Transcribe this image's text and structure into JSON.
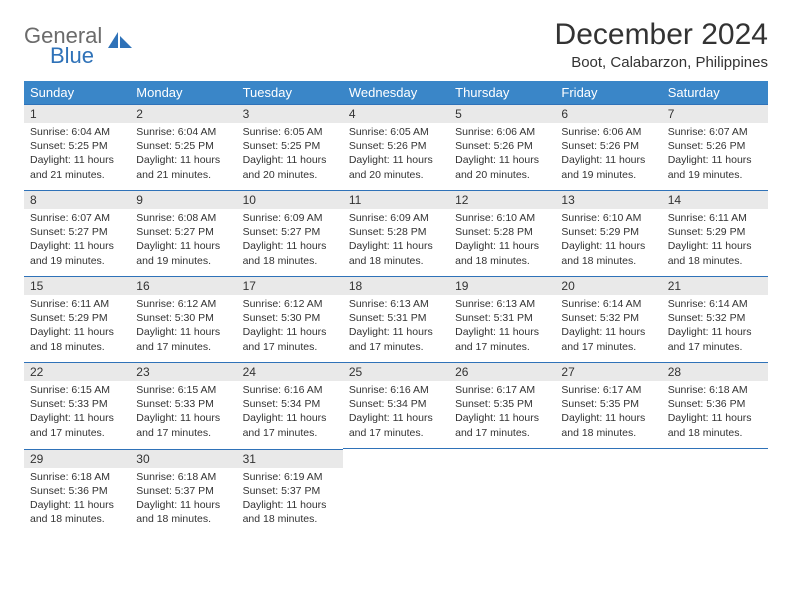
{
  "brand": {
    "word1": "General",
    "word2": "Blue"
  },
  "title": "December 2024",
  "location": "Boot, Calabarzon, Philippines",
  "colors": {
    "header_bg": "#3a86c8",
    "header_text": "#ffffff",
    "daynum_bg": "#e9e9e9",
    "rule": "#2f72b8",
    "body_text": "#333333",
    "logo_gray": "#6b6b6b",
    "logo_blue": "#2f72b8",
    "page_bg": "#ffffff"
  },
  "weekdays": [
    "Sunday",
    "Monday",
    "Tuesday",
    "Wednesday",
    "Thursday",
    "Friday",
    "Saturday"
  ],
  "labels": {
    "sunrise": "Sunrise:",
    "sunset": "Sunset:",
    "daylight": "Daylight:"
  },
  "weeks": [
    [
      {
        "n": "1",
        "sr": "6:04 AM",
        "ss": "5:25 PM",
        "dl": "11 hours and 21 minutes."
      },
      {
        "n": "2",
        "sr": "6:04 AM",
        "ss": "5:25 PM",
        "dl": "11 hours and 21 minutes."
      },
      {
        "n": "3",
        "sr": "6:05 AM",
        "ss": "5:25 PM",
        "dl": "11 hours and 20 minutes."
      },
      {
        "n": "4",
        "sr": "6:05 AM",
        "ss": "5:26 PM",
        "dl": "11 hours and 20 minutes."
      },
      {
        "n": "5",
        "sr": "6:06 AM",
        "ss": "5:26 PM",
        "dl": "11 hours and 20 minutes."
      },
      {
        "n": "6",
        "sr": "6:06 AM",
        "ss": "5:26 PM",
        "dl": "11 hours and 19 minutes."
      },
      {
        "n": "7",
        "sr": "6:07 AM",
        "ss": "5:26 PM",
        "dl": "11 hours and 19 minutes."
      }
    ],
    [
      {
        "n": "8",
        "sr": "6:07 AM",
        "ss": "5:27 PM",
        "dl": "11 hours and 19 minutes."
      },
      {
        "n": "9",
        "sr": "6:08 AM",
        "ss": "5:27 PM",
        "dl": "11 hours and 19 minutes."
      },
      {
        "n": "10",
        "sr": "6:09 AM",
        "ss": "5:27 PM",
        "dl": "11 hours and 18 minutes."
      },
      {
        "n": "11",
        "sr": "6:09 AM",
        "ss": "5:28 PM",
        "dl": "11 hours and 18 minutes."
      },
      {
        "n": "12",
        "sr": "6:10 AM",
        "ss": "5:28 PM",
        "dl": "11 hours and 18 minutes."
      },
      {
        "n": "13",
        "sr": "6:10 AM",
        "ss": "5:29 PM",
        "dl": "11 hours and 18 minutes."
      },
      {
        "n": "14",
        "sr": "6:11 AM",
        "ss": "5:29 PM",
        "dl": "11 hours and 18 minutes."
      }
    ],
    [
      {
        "n": "15",
        "sr": "6:11 AM",
        "ss": "5:29 PM",
        "dl": "11 hours and 18 minutes."
      },
      {
        "n": "16",
        "sr": "6:12 AM",
        "ss": "5:30 PM",
        "dl": "11 hours and 17 minutes."
      },
      {
        "n": "17",
        "sr": "6:12 AM",
        "ss": "5:30 PM",
        "dl": "11 hours and 17 minutes."
      },
      {
        "n": "18",
        "sr": "6:13 AM",
        "ss": "5:31 PM",
        "dl": "11 hours and 17 minutes."
      },
      {
        "n": "19",
        "sr": "6:13 AM",
        "ss": "5:31 PM",
        "dl": "11 hours and 17 minutes."
      },
      {
        "n": "20",
        "sr": "6:14 AM",
        "ss": "5:32 PM",
        "dl": "11 hours and 17 minutes."
      },
      {
        "n": "21",
        "sr": "6:14 AM",
        "ss": "5:32 PM",
        "dl": "11 hours and 17 minutes."
      }
    ],
    [
      {
        "n": "22",
        "sr": "6:15 AM",
        "ss": "5:33 PM",
        "dl": "11 hours and 17 minutes."
      },
      {
        "n": "23",
        "sr": "6:15 AM",
        "ss": "5:33 PM",
        "dl": "11 hours and 17 minutes."
      },
      {
        "n": "24",
        "sr": "6:16 AM",
        "ss": "5:34 PM",
        "dl": "11 hours and 17 minutes."
      },
      {
        "n": "25",
        "sr": "6:16 AM",
        "ss": "5:34 PM",
        "dl": "11 hours and 17 minutes."
      },
      {
        "n": "26",
        "sr": "6:17 AM",
        "ss": "5:35 PM",
        "dl": "11 hours and 17 minutes."
      },
      {
        "n": "27",
        "sr": "6:17 AM",
        "ss": "5:35 PM",
        "dl": "11 hours and 18 minutes."
      },
      {
        "n": "28",
        "sr": "6:18 AM",
        "ss": "5:36 PM",
        "dl": "11 hours and 18 minutes."
      }
    ],
    [
      {
        "n": "29",
        "sr": "6:18 AM",
        "ss": "5:36 PM",
        "dl": "11 hours and 18 minutes."
      },
      {
        "n": "30",
        "sr": "6:18 AM",
        "ss": "5:37 PM",
        "dl": "11 hours and 18 minutes."
      },
      {
        "n": "31",
        "sr": "6:19 AM",
        "ss": "5:37 PM",
        "dl": "11 hours and 18 minutes."
      },
      null,
      null,
      null,
      null
    ]
  ]
}
